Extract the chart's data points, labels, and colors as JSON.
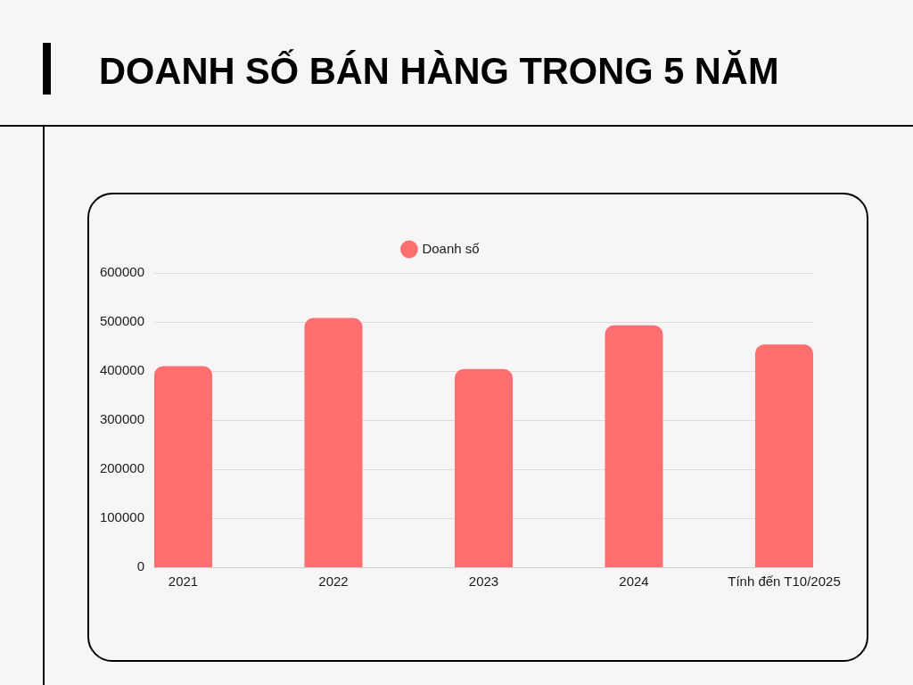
{
  "chart_data": {
    "type": "bar",
    "title": "DOANH SỐ BÁN HÀNG TRONG 5 NĂM",
    "categories": [
      "2021",
      "2022",
      "2023",
      "2024",
      "Tính đến T10/2025"
    ],
    "series": [
      {
        "name": "Doanh số",
        "color": "#ff6f6f",
        "values": [
          410000,
          508000,
          404000,
          493000,
          454000
        ]
      }
    ],
    "ylim": [
      0,
      600000
    ],
    "yticks": [
      0,
      100000,
      200000,
      300000,
      400000,
      500000,
      600000
    ],
    "grid": "y",
    "legend": "top"
  }
}
